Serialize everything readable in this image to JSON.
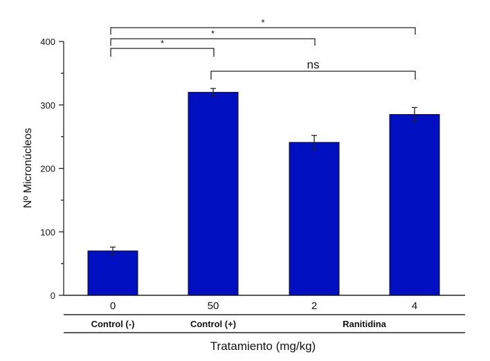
{
  "chart_data": {
    "type": "bar",
    "title": "",
    "xlabel": "Tratamiento (mg/kg)",
    "ylabel": "Nº Micronúcleos",
    "ylim": [
      0,
      400
    ],
    "yticks": [
      0,
      100,
      200,
      300,
      400
    ],
    "grid": false,
    "categories": [
      "0",
      "50",
      "2",
      "4"
    ],
    "values": [
      70,
      320,
      241,
      285
    ],
    "errors": [
      6,
      6,
      11,
      11
    ],
    "bar_color": "#0010c0",
    "groups": [
      {
        "label": "Control (-)",
        "categories": [
          0
        ]
      },
      {
        "label": "Control (+)",
        "categories": [
          1
        ]
      },
      {
        "label": "Ranitidina",
        "categories": [
          2,
          3
        ]
      }
    ],
    "annotations": [
      {
        "from": 0,
        "to": 3,
        "label": "*",
        "level": 4
      },
      {
        "from": 0,
        "to": 2,
        "label": "*",
        "level": 3
      },
      {
        "from": 0,
        "to": 1,
        "label": "*",
        "level": 2
      },
      {
        "from": 1,
        "to": 3,
        "label": "ns",
        "level": 1
      }
    ]
  }
}
